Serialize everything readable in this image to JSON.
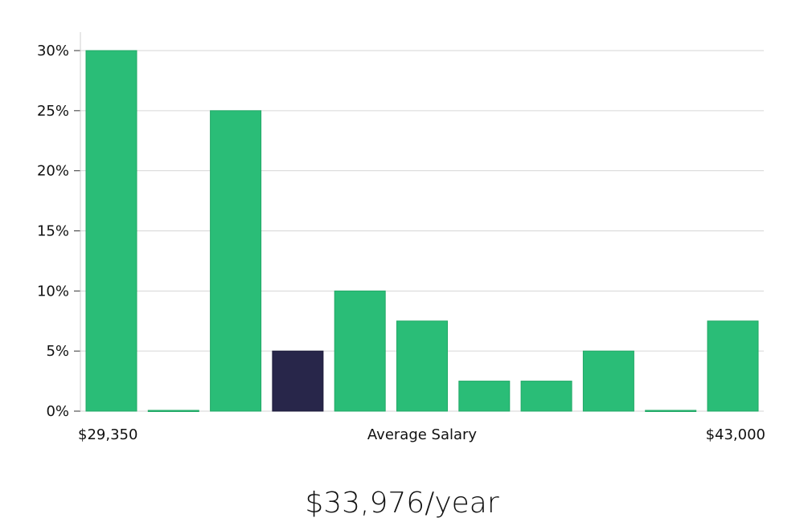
{
  "chart_data": {
    "type": "bar",
    "categories": [
      "1",
      "2",
      "3",
      "4",
      "5",
      "6",
      "7",
      "8",
      "9",
      "10",
      "11"
    ],
    "values": [
      30,
      0,
      25,
      5,
      10,
      7.5,
      2.5,
      2.5,
      5,
      0,
      7.5
    ],
    "highlight_index": 3,
    "ylim": [
      0,
      30
    ],
    "yticks": [
      0,
      5,
      10,
      15,
      20,
      25,
      30
    ],
    "ytick_labels": [
      "0%",
      "5%",
      "10%",
      "15%",
      "20%",
      "25%",
      "30%"
    ],
    "xlabel": "Average Salary",
    "x_min_label": "$29,350",
    "x_max_label": "$43,000",
    "grid": true,
    "colors": {
      "bar": "#2abd77",
      "highlight": "#28264a",
      "grid": "#d6d6d6"
    }
  },
  "salary": {
    "value": "$33,976/year"
  }
}
